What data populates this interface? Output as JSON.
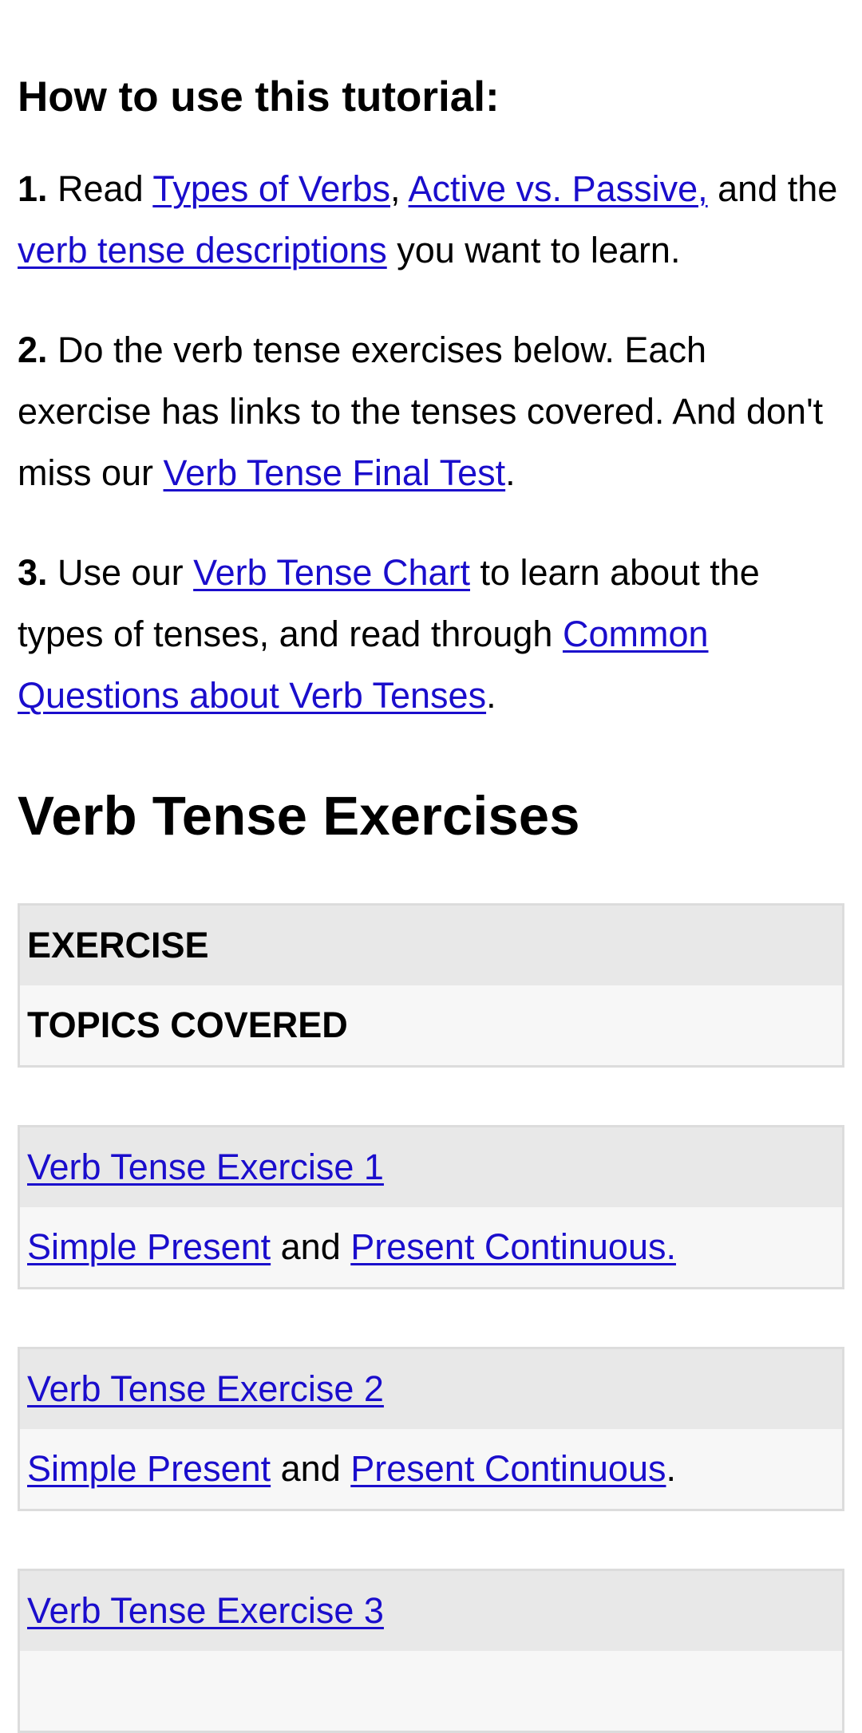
{
  "howto": {
    "heading": "How to use this tutorial:"
  },
  "step1": {
    "num": "1.",
    "t1": " Read ",
    "link_types": "Types of Verbs",
    "t2": ", ",
    "link_active": "Active vs. Passive,",
    "t3": " and the ",
    "link_desc": "verb tense descriptions",
    "t4": " you want to learn."
  },
  "step2": {
    "num": "2.",
    "t1": " Do the verb tense exercises below. Each exercise has links to the tenses covered. And don't miss our ",
    "link_final": "Verb Tense Final Test",
    "t2": "."
  },
  "step3": {
    "num": "3.",
    "t1": " Use our ",
    "link_chart": "Verb Tense Chart",
    "t2": " to learn about the types of tenses, and read through ",
    "link_common": "Common Questions about Verb Tenses",
    "t3": "."
  },
  "section": {
    "title": "Verb Tense Exercises"
  },
  "table_header": {
    "exercise": "EXERCISE",
    "topics": "TOPICS COVERED"
  },
  "exercises": [
    {
      "title": "Verb Tense Exercise 1",
      "topic_a": "Simple Present",
      "joiner": " and ",
      "topic_b": "Present Continuous.",
      "tail": ""
    },
    {
      "title": "Verb Tense Exercise 2",
      "topic_a": "Simple Present",
      "joiner": " and ",
      "topic_b": "Present Continuous",
      "tail": "."
    },
    {
      "title": "Verb Tense Exercise 3"
    }
  ],
  "colors": {
    "link": "#1a0dcc",
    "row_header_bg": "#e8e8e8",
    "row_body_bg": "#f7f7f7",
    "border": "#dcdcdc"
  }
}
